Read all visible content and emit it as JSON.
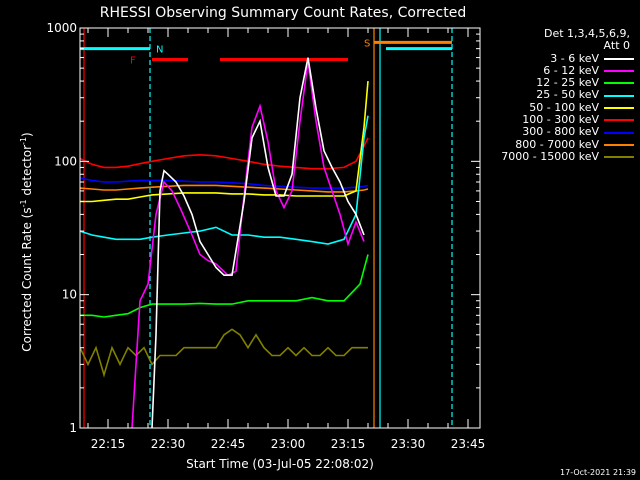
{
  "chart_data": {
    "type": "line",
    "title": "RHESSI Observing Summary Count Rates, Corrected",
    "xlabel": "Start Time (03-Jul-05 22:08:02)",
    "ylabel_main": "Corrected Count Rate (s",
    "ylabel_sup1": "-1",
    "ylabel_mid": " detector",
    "ylabel_sup2": "-1",
    "ylabel_end": ")",
    "x_range_min": [
      0,
      100
    ],
    "y_range": [
      1,
      1000
    ],
    "y_scale": "log",
    "x_ticks": [
      {
        "label": "22:15",
        "min": 7
      },
      {
        "label": "22:30",
        "min": 22
      },
      {
        "label": "22:45",
        "min": 37
      },
      {
        "label": "23:00",
        "min": 52
      },
      {
        "label": "23:15",
        "min": 67
      },
      {
        "label": "23:30",
        "min": 82
      },
      {
        "label": "23:45",
        "min": 97
      }
    ],
    "y_ticks": [
      {
        "label": "1",
        "value": 1
      },
      {
        "label": "10",
        "value": 10
      },
      {
        "label": "100",
        "value": 100
      },
      {
        "label": "1000",
        "value": 1000
      }
    ],
    "legend_header": [
      "Det 1,3,4,5,6,9,",
      "Att 0"
    ],
    "series": [
      {
        "name": "3 - 6 keV",
        "color": "#ffffff",
        "x": [
          18,
          19,
          20,
          21,
          22,
          24,
          26,
          28,
          30,
          32,
          34,
          36,
          38,
          41,
          43,
          45,
          47,
          49,
          51,
          53,
          55,
          57,
          59,
          61,
          63,
          65,
          67,
          69,
          71
        ],
        "y": [
          1,
          5,
          60,
          85,
          80,
          70,
          55,
          40,
          25,
          20,
          16,
          14,
          14,
          50,
          150,
          200,
          90,
          55,
          55,
          80,
          300,
          600,
          250,
          120,
          90,
          70,
          50,
          40,
          28
        ]
      },
      {
        "name": "6 - 12 keV",
        "color": "#ff00ff",
        "x": [
          13,
          15,
          17,
          19,
          21,
          23,
          25,
          28,
          30,
          32,
          34,
          37,
          39,
          41,
          43,
          45,
          47,
          49,
          51,
          53,
          55,
          57,
          59,
          61,
          63,
          65,
          67,
          69,
          71
        ],
        "y": [
          1,
          9,
          12,
          40,
          70,
          60,
          45,
          28,
          20,
          18,
          17,
          14,
          15,
          55,
          180,
          260,
          140,
          60,
          45,
          60,
          200,
          560,
          200,
          90,
          60,
          40,
          24,
          35,
          25
        ]
      },
      {
        "name": "12 - 25 keV",
        "color": "#00ff00",
        "x": [
          0,
          3,
          6,
          9,
          12,
          15,
          18,
          22,
          26,
          30,
          34,
          38,
          42,
          46,
          50,
          54,
          58,
          62,
          66,
          70,
          72
        ],
        "y": [
          7,
          7,
          6.8,
          7,
          7.2,
          8,
          8.5,
          8.5,
          8.5,
          8.6,
          8.5,
          8.5,
          9,
          9,
          9,
          9,
          9.5,
          9,
          9,
          12,
          20
        ]
      },
      {
        "name": "25 - 50 keV",
        "color": "#00ffff",
        "x": [
          0,
          3,
          6,
          9,
          12,
          15,
          18,
          22,
          26,
          30,
          34,
          38,
          42,
          46,
          50,
          54,
          58,
          62,
          66,
          69,
          71,
          72
        ],
        "y": [
          30,
          28,
          27,
          26,
          26,
          26,
          27,
          28,
          29,
          30,
          32,
          28,
          28,
          27,
          27,
          26,
          25,
          24,
          26,
          40,
          150,
          220
        ]
      },
      {
        "name": "50 - 100 keV",
        "color": "#ffff00",
        "x": [
          0,
          3,
          6,
          9,
          12,
          15,
          18,
          22,
          26,
          30,
          34,
          38,
          42,
          46,
          50,
          54,
          58,
          62,
          66,
          69,
          71,
          72
        ],
        "y": [
          50,
          50,
          51,
          52,
          52,
          54,
          56,
          57,
          58,
          58,
          58,
          57,
          57,
          56,
          56,
          55,
          55,
          55,
          55,
          60,
          180,
          400
        ]
      },
      {
        "name": "100 - 300 keV",
        "color": "#ff0000",
        "x": [
          0,
          3,
          6,
          9,
          12,
          15,
          18,
          22,
          26,
          30,
          34,
          38,
          42,
          46,
          50,
          54,
          58,
          62,
          66,
          69,
          71,
          72
        ],
        "y": [
          105,
          95,
          90,
          90,
          92,
          96,
          100,
          105,
          110,
          112,
          110,
          105,
          100,
          95,
          92,
          90,
          88,
          88,
          90,
          100,
          130,
          150
        ]
      },
      {
        "name": "300 - 800 keV",
        "color": "#0000ff",
        "x": [
          0,
          3,
          6,
          9,
          12,
          15,
          18,
          22,
          26,
          30,
          34,
          38,
          42,
          46,
          50,
          54,
          58,
          62,
          66,
          69,
          71,
          72
        ],
        "y": [
          75,
          72,
          70,
          70,
          71,
          72,
          72,
          72,
          71,
          70,
          70,
          69,
          68,
          66,
          65,
          64,
          63,
          63,
          63,
          64,
          65,
          66
        ]
      },
      {
        "name": "800 - 7000 keV",
        "color": "#ff8000",
        "x": [
          0,
          3,
          6,
          9,
          12,
          15,
          18,
          22,
          26,
          30,
          34,
          38,
          42,
          46,
          50,
          54,
          58,
          62,
          66,
          69,
          71,
          72
        ],
        "y": [
          63,
          62,
          61,
          61,
          62,
          63,
          64,
          65,
          66,
          66,
          66,
          65,
          64,
          63,
          62,
          61,
          60,
          59,
          59,
          60,
          61,
          62
        ]
      },
      {
        "name": "7000 - 15000 keV",
        "color": "#808000",
        "x": [
          0,
          2,
          4,
          6,
          8,
          10,
          12,
          14,
          16,
          18,
          20,
          22,
          24,
          26,
          28,
          30,
          32,
          34,
          36,
          38,
          40,
          42,
          44,
          46,
          48,
          50,
          52,
          54,
          56,
          58,
          60,
          62,
          64,
          66,
          68,
          70,
          72
        ],
        "y": [
          4,
          3,
          4,
          2.5,
          4,
          3,
          4,
          3.5,
          4,
          3,
          3.5,
          3.5,
          3.5,
          4,
          4,
          4,
          4,
          4,
          5,
          5.5,
          5,
          4,
          5,
          4,
          3.5,
          3.5,
          4,
          3.5,
          4,
          3.5,
          3.5,
          4,
          3.5,
          3.5,
          4,
          4,
          4
        ]
      }
    ],
    "annotations": [
      {
        "label": "N",
        "kind": "night",
        "color": "#00ffff",
        "x": 17.5,
        "y_level": 700
      },
      {
        "label": "F",
        "kind": "flare",
        "color": "#ff0000",
        "x": 15,
        "y_level": 580
      },
      {
        "label": "S",
        "kind": "saa",
        "color": "#ff8000",
        "x": 73.5,
        "y_level": 780
      }
    ],
    "night_segments": [
      [
        0,
        17.5
      ],
      [
        76.5,
        93
      ]
    ],
    "flare_segments": [
      [
        18,
        27
      ],
      [
        35,
        67
      ]
    ],
    "saa_segments": [
      [
        73.5,
        93
      ]
    ],
    "vlines": [
      {
        "min": 1,
        "color": "#ff0000",
        "style": "solid"
      },
      {
        "min": 17.5,
        "color": "#00ffff",
        "style": "dashed"
      },
      {
        "min": 73.5,
        "color": "#ff8000",
        "style": "solid"
      },
      {
        "min": 75,
        "color": "#00ffff",
        "style": "solid"
      },
      {
        "min": 93,
        "color": "#00ffff",
        "style": "dashed"
      }
    ]
  },
  "timestamp": "17-Oct-2021 21:39"
}
